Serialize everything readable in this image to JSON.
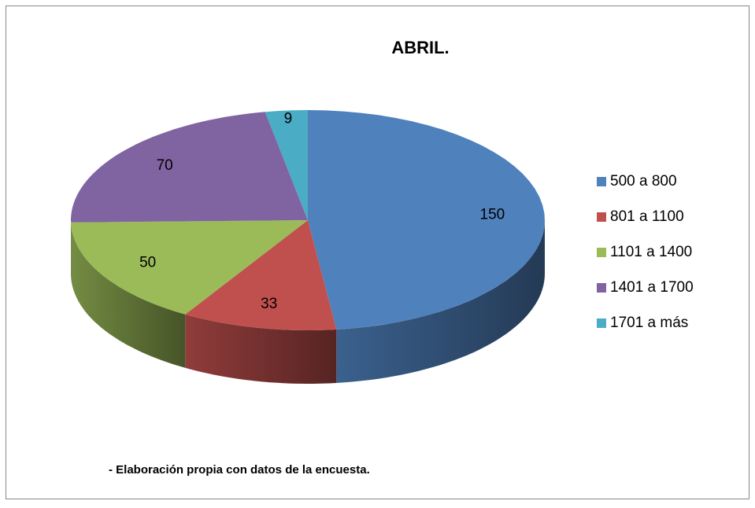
{
  "chart_data": {
    "type": "pie",
    "title": "ABRIL.",
    "categories": [
      "500 a 800",
      "801 a 1100",
      "1101 a 1400",
      "1401 a 1700",
      "1701 a más"
    ],
    "values": [
      150,
      33,
      50,
      70,
      9
    ],
    "colors": [
      "#4f81bd",
      "#c0504d",
      "#9bbb59",
      "#8064a2",
      "#4bacc6"
    ],
    "legend": "right",
    "note": "- Elaboración propia con datos de la encuesta."
  }
}
